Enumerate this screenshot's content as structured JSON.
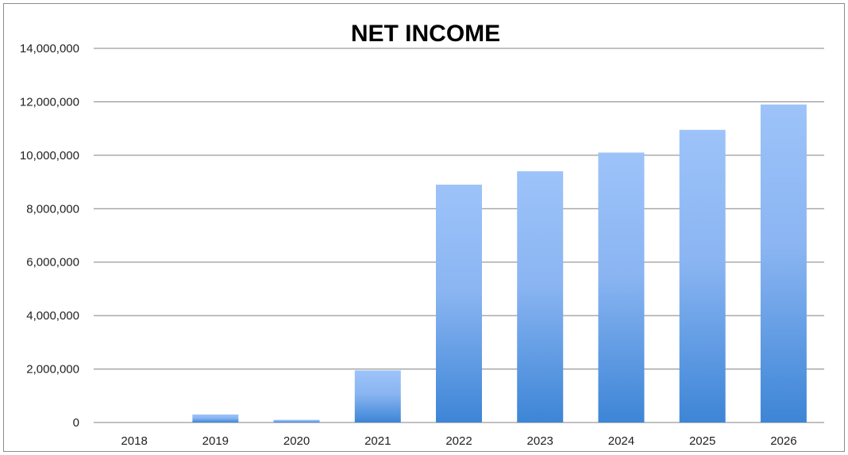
{
  "chart_data": {
    "type": "bar",
    "title": "NET INCOME",
    "categories": [
      "2018",
      "2019",
      "2020",
      "2021",
      "2022",
      "2023",
      "2024",
      "2025",
      "2026"
    ],
    "values": [
      0,
      300000,
      100000,
      1950000,
      8900000,
      9400000,
      10100000,
      10950000,
      11900000
    ],
    "ylim": [
      0,
      14000000
    ],
    "yticks": [
      0,
      2000000,
      4000000,
      6000000,
      8000000,
      10000000,
      12000000,
      14000000
    ],
    "ytick_labels": [
      "0",
      "2,000,000",
      "4,000,000",
      "6,000,000",
      "8,000,000",
      "10,000,000",
      "12,000,000",
      "14,000,000"
    ],
    "grid": true,
    "legend": "none",
    "colors": {
      "bar_top": "#9dc3f9",
      "bar_bottom": "#3d85d6",
      "grid": "#808080"
    }
  }
}
